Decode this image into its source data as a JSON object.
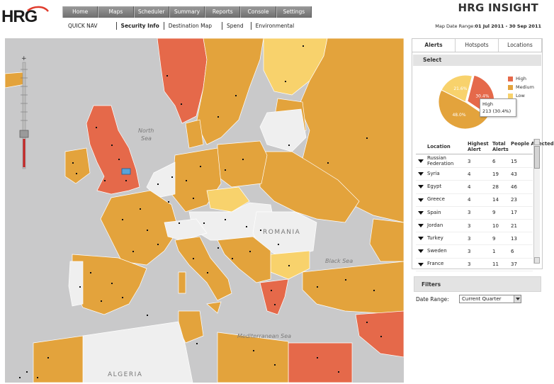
{
  "header": {
    "logo_text": "HRG",
    "brand": "HRG INSIGHT",
    "top_nav": [
      "Home",
      "Maps",
      "Scheduler",
      "Summary",
      "Reports",
      "Console",
      "Settings"
    ],
    "sub_nav": [
      "QUICK NAV",
      "Security Info",
      "Destination Map",
      "Spend",
      "Environmental"
    ],
    "date_range_label": "Map Date Range:",
    "date_range_value": "01 Jul 2011 - 30 Sep 2011"
  },
  "map": {
    "sea_labels": {
      "north_sea_1": "North",
      "north_sea_2": "Sea",
      "black_sea": "Black Sea",
      "mediterranean": "Mediterranean Sea"
    },
    "country_labels": {
      "romania": "ROMANIA",
      "algeria": "ALGERIA"
    },
    "colors": {
      "sea": "#c9c9ca",
      "high": "#e5694a",
      "medium": "#e3a33c",
      "low": "#f8d26c",
      "none": "#efefef",
      "land_other": "#d5d5d5"
    }
  },
  "panel": {
    "tabs": [
      "Alerts",
      "Hotspots",
      "Locations"
    ],
    "select_label": "Select",
    "pie": {
      "slices": [
        {
          "name": "High",
          "percent": 30.4,
          "label": "30.4%",
          "color": "#e5694a"
        },
        {
          "name": "Medium",
          "percent": 48.0,
          "label": "48.0%",
          "color": "#e3a33c"
        },
        {
          "name": "Low",
          "percent": 21.6,
          "label": "21.6%",
          "color": "#f8d26c"
        }
      ],
      "legend": [
        "High",
        "Medium",
        "Low"
      ],
      "tooltip_line1": "High",
      "tooltip_line2": "213 (30.4%)"
    },
    "table": {
      "headers": [
        "Location",
        "Highest Alert",
        "Total Alerts",
        "People Affected"
      ],
      "rows": [
        {
          "location": "Russian Federation",
          "highest": "3",
          "total": "6",
          "people": "15"
        },
        {
          "location": "Syria",
          "highest": "4",
          "total": "19",
          "people": "43"
        },
        {
          "location": "Egypt",
          "highest": "4",
          "total": "28",
          "people": "46"
        },
        {
          "location": "Greece",
          "highest": "4",
          "total": "14",
          "people": "23"
        },
        {
          "location": "Spain",
          "highest": "3",
          "total": "9",
          "people": "17"
        },
        {
          "location": "Jordan",
          "highest": "3",
          "total": "10",
          "people": "21"
        },
        {
          "location": "Turkey",
          "highest": "3",
          "total": "9",
          "people": "13"
        },
        {
          "location": "Sweden",
          "highest": "3",
          "total": "1",
          "people": "6"
        },
        {
          "location": "France",
          "highest": "3",
          "total": "11",
          "people": "37"
        }
      ]
    }
  },
  "filters": {
    "title": "Filters",
    "date_range_label": "Date Range:",
    "date_range_value": "Current Quarter"
  }
}
